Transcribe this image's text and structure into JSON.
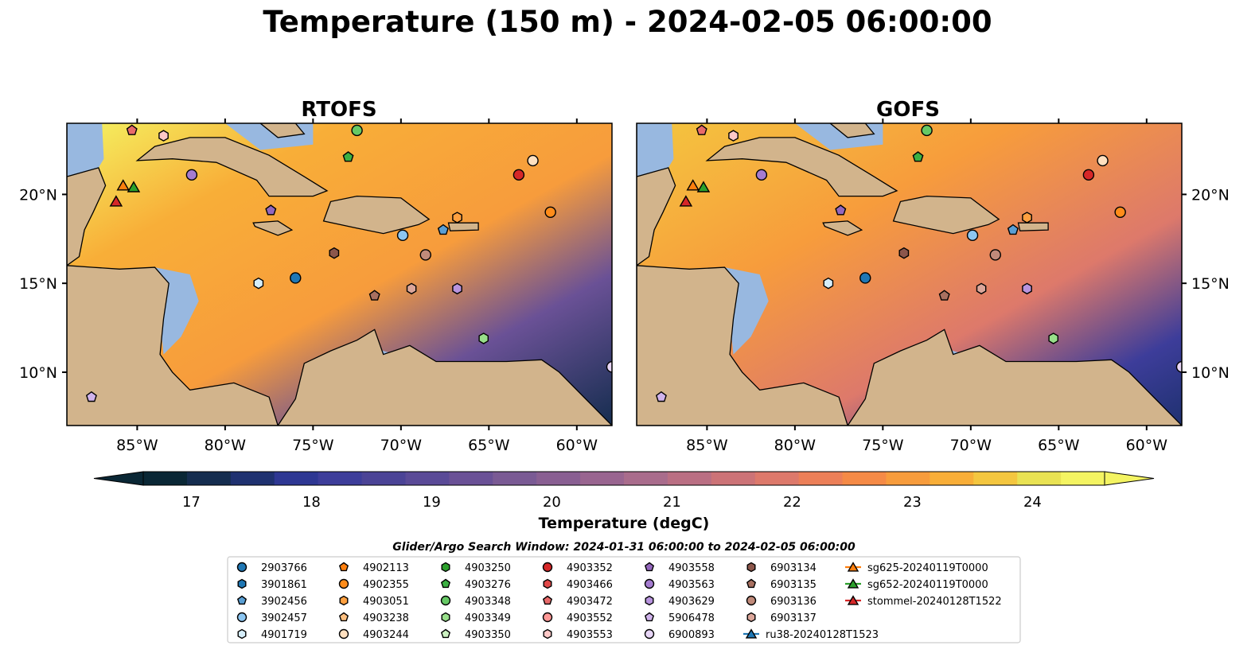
{
  "title": "Temperature (150 m) - 2024-02-05 06:00:00",
  "chart_data": {
    "type": "heatmap",
    "variable": "Temperature",
    "depth": "150 m",
    "colormap": "thermal",
    "lon_range": [
      -89,
      -58
    ],
    "lat_range": [
      7,
      24
    ],
    "lon_ticks": [
      -85,
      -80,
      -75,
      -70,
      -65,
      -60
    ],
    "lon_tick_labels": [
      "85°W",
      "80°W",
      "75°W",
      "70°W",
      "65°W",
      "60°W"
    ],
    "lat_ticks": [
      10,
      15,
      20
    ],
    "lat_tick_labels": [
      "10°N",
      "15°N",
      "20°N"
    ],
    "panels": [
      {
        "title": "RTOFS"
      },
      {
        "title": "GOFS"
      }
    ],
    "colorbar": {
      "label": "Temperature (degC)",
      "range": [
        16.6,
        24.6
      ],
      "ticks": [
        17,
        18,
        19,
        20,
        21,
        22,
        23,
        24
      ],
      "tick_labels": [
        "17",
        "18",
        "19",
        "20",
        "21",
        "22",
        "23",
        "24"
      ],
      "extend": "both",
      "colors": [
        "#0a2735",
        "#152d4f",
        "#1f3170",
        "#2e3793",
        "#3d3d9a",
        "#4b4396",
        "#5a4a97",
        "#6a5196",
        "#7a5a94",
        "#895f92",
        "#996590",
        "#a96c8c",
        "#ba6f83",
        "#cc7377",
        "#dd796b",
        "#ec7f58",
        "#f58a46",
        "#f79c3c",
        "#f8ae38",
        "#f4c63f",
        "#e9e253",
        "#f4f462"
      ]
    },
    "legend": {
      "title": "Glider/Argo Search Window: 2024-01-31 06:00:00 to 2024-02-05 06:00:00",
      "entries": [
        {
          "label": "2903766",
          "marker": "circle",
          "color": "#1f77b4",
          "lon": -76,
          "lat": 15.3,
          "panel": "both"
        },
        {
          "label": "3901861",
          "marker": "hexagon",
          "color": "#1f77b4",
          "lon": null,
          "lat": null,
          "panel": "none"
        },
        {
          "label": "3902456",
          "marker": "pentagon",
          "color": "#5a9fd4",
          "lon": -67.6,
          "lat": 18.0,
          "panel": "both"
        },
        {
          "label": "3902457",
          "marker": "circle",
          "color": "#8cc6f2",
          "lon": -69.9,
          "lat": 17.7,
          "panel": "both"
        },
        {
          "label": "4901719",
          "marker": "hexagon",
          "color": "#d6eefa",
          "lon": -78.1,
          "lat": 15.0,
          "panel": "both"
        },
        {
          "label": "4902113",
          "marker": "pentagon",
          "color": "#ff7f0e",
          "lon": null,
          "lat": null,
          "panel": "none"
        },
        {
          "label": "4902355",
          "marker": "circle",
          "color": "#ff8c1a",
          "lon": -61.5,
          "lat": 19.0,
          "panel": "both"
        },
        {
          "label": "4903051",
          "marker": "hexagon",
          "color": "#ffa040",
          "lon": -66.8,
          "lat": 18.7,
          "panel": "both"
        },
        {
          "label": "4903238",
          "marker": "pentagon",
          "color": "#ffc080",
          "lon": null,
          "lat": null,
          "panel": "none"
        },
        {
          "label": "4903244",
          "marker": "circle",
          "color": "#ffe0c0",
          "lon": -62.5,
          "lat": 21.9,
          "panel": "both"
        },
        {
          "label": "4903250",
          "marker": "hexagon",
          "color": "#2ca02c",
          "lon": null,
          "lat": null,
          "panel": "none"
        },
        {
          "label": "4903276",
          "marker": "pentagon",
          "color": "#3cb043",
          "lon": -73.0,
          "lat": 22.1,
          "panel": "both"
        },
        {
          "label": "4903348",
          "marker": "circle",
          "color": "#66c965",
          "lon": -72.5,
          "lat": 23.6,
          "panel": "both"
        },
        {
          "label": "4903349",
          "marker": "hexagon",
          "color": "#98df8a",
          "lon": -65.3,
          "lat": 11.9,
          "panel": "both"
        },
        {
          "label": "4903350",
          "marker": "pentagon",
          "color": "#cbf0c0",
          "lon": null,
          "lat": null,
          "panel": "none"
        },
        {
          "label": "4903352",
          "marker": "circle",
          "color": "#d62728",
          "lon": -63.3,
          "lat": 21.1,
          "panel": "both"
        },
        {
          "label": "4903466",
          "marker": "hexagon",
          "color": "#e04848",
          "lon": null,
          "lat": null,
          "panel": "none"
        },
        {
          "label": "4903472",
          "marker": "pentagon",
          "color": "#e86a6a",
          "lon": -85.3,
          "lat": 23.6,
          "panel": "both"
        },
        {
          "label": "4903552",
          "marker": "circle",
          "color": "#ff9896",
          "lon": null,
          "lat": null,
          "panel": "none"
        },
        {
          "label": "4903553",
          "marker": "hexagon",
          "color": "#ffc8c7",
          "lon": -83.5,
          "lat": 23.3,
          "panel": "both"
        },
        {
          "label": "4903558",
          "marker": "pentagon",
          "color": "#9467bd",
          "lon": -77.4,
          "lat": 19.1,
          "panel": "both"
        },
        {
          "label": "4903563",
          "marker": "circle",
          "color": "#a57cd0",
          "lon": -81.9,
          "lat": 21.1,
          "panel": "both"
        },
        {
          "label": "4903629",
          "marker": "hexagon",
          "color": "#b894de",
          "lon": -66.8,
          "lat": 14.7,
          "panel": "both"
        },
        {
          "label": "5906478",
          "marker": "pentagon",
          "color": "#d0b3ec",
          "lon": -87.6,
          "lat": 8.6,
          "panel": "both"
        },
        {
          "label": "6900893",
          "marker": "circle",
          "color": "#e8d6f7",
          "lon": -58.0,
          "lat": 10.3,
          "panel": "both"
        },
        {
          "label": "6903134",
          "marker": "hexagon",
          "color": "#8c564b",
          "lon": -73.8,
          "lat": 16.7,
          "panel": "both"
        },
        {
          "label": "6903135",
          "marker": "pentagon",
          "color": "#a87060",
          "lon": -71.5,
          "lat": 14.3,
          "panel": "both"
        },
        {
          "label": "6903136",
          "marker": "circle",
          "color": "#c08a7a",
          "lon": -68.6,
          "lat": 16.6,
          "panel": "both"
        },
        {
          "label": "6903137",
          "marker": "hexagon",
          "color": "#dba69a",
          "lon": -69.4,
          "lat": 14.7,
          "panel": "both"
        },
        {
          "label": "ru38-20240128T1523",
          "marker": "triangle",
          "color": "#1f77b4",
          "lon": null,
          "lat": null,
          "panel": "none",
          "track": true
        },
        {
          "label": "sg625-20240119T0000",
          "marker": "triangle",
          "color": "#ff7f0e",
          "lon": -85.8,
          "lat": 20.5,
          "panel": "both",
          "track": true
        },
        {
          "label": "sg652-20240119T0000",
          "marker": "triangle",
          "color": "#2ca02c",
          "lon": -85.2,
          "lat": 20.4,
          "panel": "both",
          "track": true
        },
        {
          "label": "stommel-20240128T1522",
          "marker": "triangle",
          "color": "#d62728",
          "lon": -86.2,
          "lat": 19.6,
          "panel": "both",
          "track": true
        }
      ]
    }
  }
}
